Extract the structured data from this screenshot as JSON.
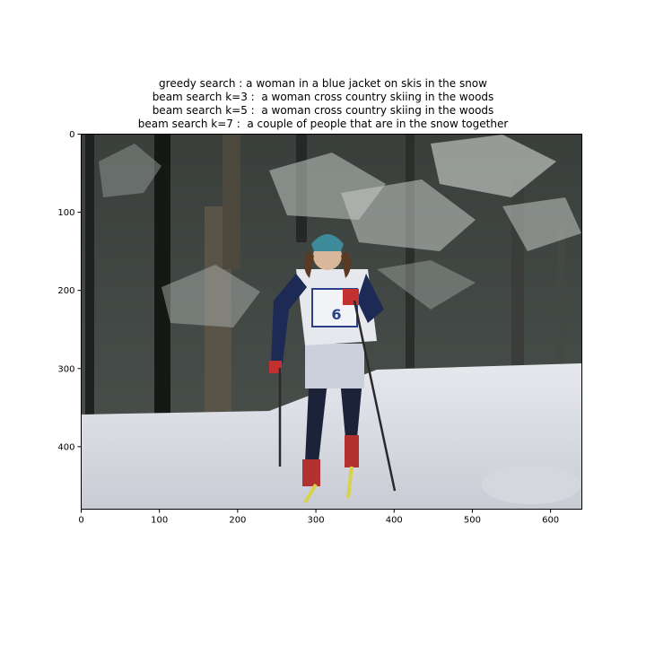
{
  "figure": {
    "title_lines": [
      "greedy search : a woman in a blue jacket on skis in the snow",
      "beam search k=3 :  a woman cross country skiing in the woods",
      "beam search k=5 :  a woman cross country skiing in the woods",
      "beam search k=7 :  a couple of people that are in the snow together"
    ]
  },
  "chart_data": {
    "type": "image",
    "title": "greedy search : a woman in a blue jacket on skis in the snow\n beam search k=3 :  a woman cross country skiing in the woods\n beam search k=5 :  a woman cross country skiing in the woods\n beam search k=7 :  a couple of people that are in the snow together",
    "xlabel": "",
    "ylabel": "",
    "xlim": [
      0,
      640
    ],
    "ylim": [
      480,
      0
    ],
    "x_ticks": [
      0,
      100,
      200,
      300,
      400,
      500,
      600
    ],
    "y_ticks": [
      0,
      100,
      200,
      300,
      400
    ],
    "grid": false,
    "image_content": "cross-country skier with bib number 6 in snowy woods",
    "bib_number": "6",
    "bib_colors": {
      "skier_jacket": "#2b3f8a",
      "snow": "#dcdfe6",
      "trees": "#2a2e2b"
    }
  }
}
